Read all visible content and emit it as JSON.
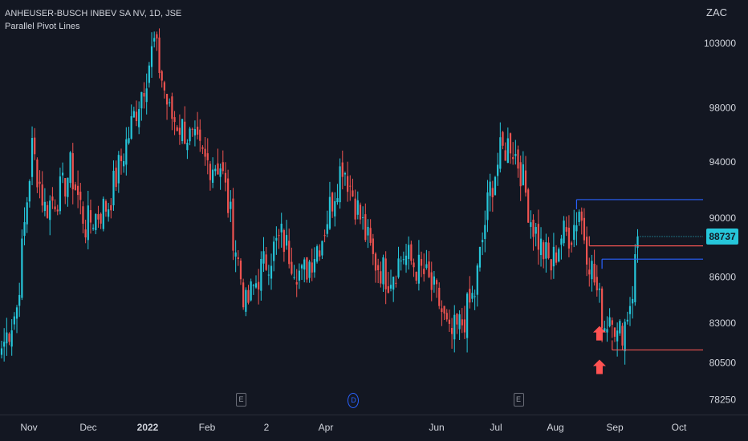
{
  "header": {
    "symbol_line": "ANHEUSER-BUSCH INBEV SA NV, 1D, JSE",
    "indicator_line": "Parallel Pivot Lines",
    "currency": "ZAC"
  },
  "colors": {
    "background": "#131722",
    "up_candle": "#26c6da",
    "down_candle": "#ef5350",
    "pivot_high_line": "#2962ff",
    "pivot_low_line": "#ef5350",
    "arrow": "#ff5252",
    "price_tag": "#26c6da"
  },
  "chart_data": {
    "type": "candlestick",
    "title": "ANHEUSER-BUSCH INBEV SA NV, 1D, JSE",
    "y_ticks": [
      103000,
      98000,
      94000,
      90000,
      86000,
      83000,
      80500,
      78250
    ],
    "y_scale": "log",
    "ylim": [
      77300,
      106500
    ],
    "x_ticks": [
      "Nov",
      "Dec",
      "2022",
      "Feb",
      "2",
      "Apr",
      "Jun",
      "Jul",
      "Aug",
      "Sep",
      "Oct"
    ],
    "current_price": 88737,
    "anchors": [
      [
        0,
        81400
      ],
      [
        6,
        84000
      ],
      [
        12,
        95000
      ],
      [
        17,
        90700
      ],
      [
        24,
        92000
      ],
      [
        27,
        93500
      ],
      [
        33,
        89500
      ],
      [
        42,
        91000
      ],
      [
        50,
        96000
      ],
      [
        56,
        100000
      ],
      [
        60,
        103000
      ],
      [
        66,
        97500
      ],
      [
        72,
        96300
      ],
      [
        80,
        94000
      ],
      [
        86,
        93800
      ],
      [
        90,
        90000
      ],
      [
        96,
        84000
      ],
      [
        102,
        86500
      ],
      [
        110,
        88700
      ],
      [
        118,
        86000
      ],
      [
        126,
        88800
      ],
      [
        134,
        94000
      ],
      [
        140,
        90600
      ],
      [
        146,
        87200
      ],
      [
        152,
        86000
      ],
      [
        158,
        87500
      ],
      [
        166,
        86200
      ],
      [
        172,
        84300
      ],
      [
        176,
        82000
      ],
      [
        181,
        83000
      ],
      [
        186,
        85000
      ],
      [
        192,
        92000
      ],
      [
        196,
        94500
      ],
      [
        200,
        95500
      ],
      [
        204,
        93500
      ],
      [
        208,
        90000
      ],
      [
        212,
        88000
      ],
      [
        216,
        86700
      ],
      [
        220,
        88800
      ],
      [
        224,
        89000
      ],
      [
        227,
        90700
      ],
      [
        230,
        88000
      ],
      [
        234,
        85000
      ],
      [
        237,
        82900
      ],
      [
        240,
        84000
      ],
      [
        242,
        82000
      ],
      [
        245,
        83000
      ],
      [
        248,
        85200
      ],
      [
        250,
        88737
      ]
    ],
    "pivot_lines": [
      {
        "level": 91300,
        "start_index": 226,
        "color": "#2962ff"
      },
      {
        "level": 88100,
        "start_index": 231,
        "color": "#ef5350"
      },
      {
        "level": 87200,
        "start_index": 236,
        "color": "#2962ff"
      },
      {
        "level": 81300,
        "start_index": 240,
        "color": "#ef5350"
      }
    ],
    "signal_arrows": [
      {
        "index": 235,
        "price": 82200
      },
      {
        "index": 235,
        "price": 80100
      }
    ],
    "events": [
      {
        "label": "E",
        "type": "earnings",
        "index": 94
      },
      {
        "label": "D",
        "type": "dividend",
        "index": 138
      },
      {
        "label": "E",
        "type": "earnings",
        "index": 203
      }
    ]
  }
}
